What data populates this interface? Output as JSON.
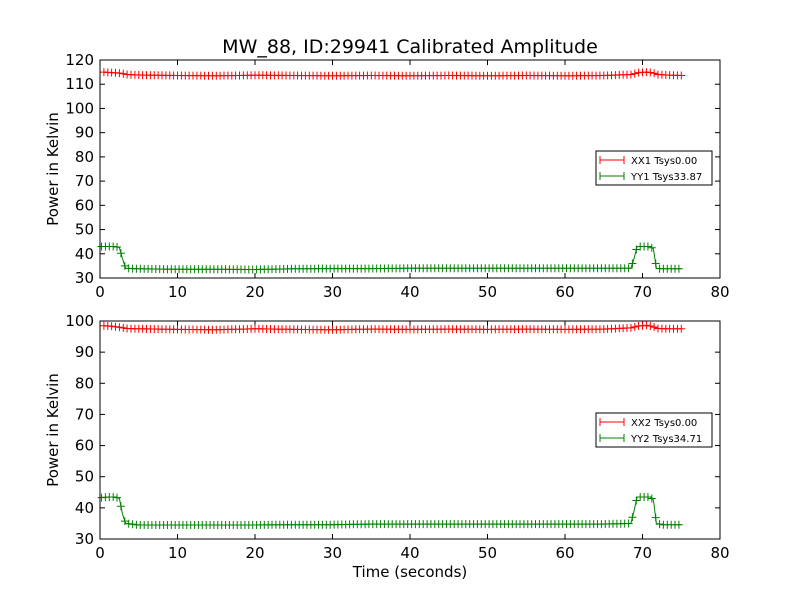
{
  "figure": {
    "title": "MW_88, ID:29941 Calibrated Amplitude",
    "xlabel": "Time (seconds)"
  },
  "chart_data": [
    {
      "type": "line",
      "title": "MW_88, ID:29941 Calibrated Amplitude",
      "xlabel": "",
      "ylabel": "Power in Kelvin",
      "xlim": [
        0,
        80
      ],
      "ylim": [
        30,
        120
      ],
      "xticks": [
        0,
        10,
        20,
        30,
        40,
        50,
        60,
        70,
        80
      ],
      "yticks": [
        30,
        40,
        50,
        60,
        70,
        80,
        90,
        100,
        110,
        120
      ],
      "legend_position": "center-right",
      "grid": false,
      "series": [
        {
          "name": "XX1 Tsys0.00",
          "color": "#ff0000",
          "marker": "plus",
          "x": [
            0.5,
            1.5,
            2.5,
            3.5,
            5,
            10,
            15,
            20,
            25,
            30,
            35,
            40,
            45,
            50,
            55,
            60,
            65,
            68.5,
            69.5,
            70.5,
            71.2,
            72,
            73,
            75
          ],
          "y": [
            115,
            114.8,
            114.6,
            114,
            113.8,
            113.6,
            113.5,
            113.7,
            113.6,
            113.5,
            113.6,
            113.5,
            113.6,
            113.5,
            113.6,
            113.5,
            113.6,
            114,
            114.8,
            115,
            114.8,
            114,
            113.8,
            113.6
          ]
        },
        {
          "name": "YY1 Tsys33.87",
          "color": "#008000",
          "marker": "plus",
          "x": [
            0.2,
            1,
            2,
            2.5,
            2.9,
            3.3,
            5,
            10,
            15,
            20,
            25,
            30,
            35,
            40,
            45,
            50,
            55,
            60,
            65,
            68.5,
            68.9,
            69.3,
            70,
            71,
            71.4,
            71.8,
            72.5,
            75
          ],
          "y": [
            43,
            43,
            43,
            42.5,
            38,
            34,
            33.8,
            33.6,
            33.6,
            33.5,
            33.8,
            33.9,
            33.9,
            34,
            34,
            34,
            34,
            34,
            34,
            34,
            38,
            43,
            43,
            43,
            42,
            34,
            33.8,
            33.8
          ]
        }
      ]
    },
    {
      "type": "line",
      "title": "",
      "xlabel": "Time (seconds)",
      "ylabel": "Power in Kelvin",
      "xlim": [
        0,
        80
      ],
      "ylim": [
        30,
        100
      ],
      "xticks": [
        0,
        10,
        20,
        30,
        40,
        50,
        60,
        70,
        80
      ],
      "yticks": [
        30,
        40,
        50,
        60,
        70,
        80,
        90,
        100
      ],
      "legend_position": "center-right",
      "grid": false,
      "series": [
        {
          "name": "XX2 Tsys0.00",
          "color": "#ff0000",
          "marker": "plus",
          "x": [
            0.5,
            1.5,
            2.5,
            3.5,
            5,
            10,
            15,
            20,
            25,
            30,
            35,
            40,
            45,
            50,
            55,
            60,
            65,
            68.5,
            69.5,
            70.5,
            71.2,
            72,
            73,
            75
          ],
          "y": [
            98.5,
            98.3,
            98,
            97.6,
            97.5,
            97.3,
            97.2,
            97.5,
            97.3,
            97.2,
            97.4,
            97.3,
            97.4,
            97.3,
            97.4,
            97.3,
            97.4,
            97.8,
            98.4,
            98.6,
            98.3,
            97.6,
            97.5,
            97.5
          ]
        },
        {
          "name": "YY2 Tsys34.71",
          "color": "#008000",
          "marker": "plus",
          "x": [
            0.2,
            1,
            2,
            2.5,
            2.9,
            3.3,
            5,
            10,
            15,
            20,
            25,
            30,
            35,
            40,
            45,
            50,
            55,
            60,
            65,
            68.5,
            68.9,
            69.3,
            70,
            71,
            71.4,
            71.8,
            72.5,
            75
          ],
          "y": [
            43.3,
            43.5,
            43.5,
            43,
            38,
            35,
            34.5,
            34.5,
            34.5,
            34.5,
            34.6,
            34.6,
            34.8,
            34.8,
            34.8,
            34.8,
            34.8,
            34.8,
            34.8,
            35,
            39,
            43.5,
            43.5,
            43.5,
            42.5,
            35,
            34.6,
            34.6
          ]
        }
      ]
    }
  ]
}
